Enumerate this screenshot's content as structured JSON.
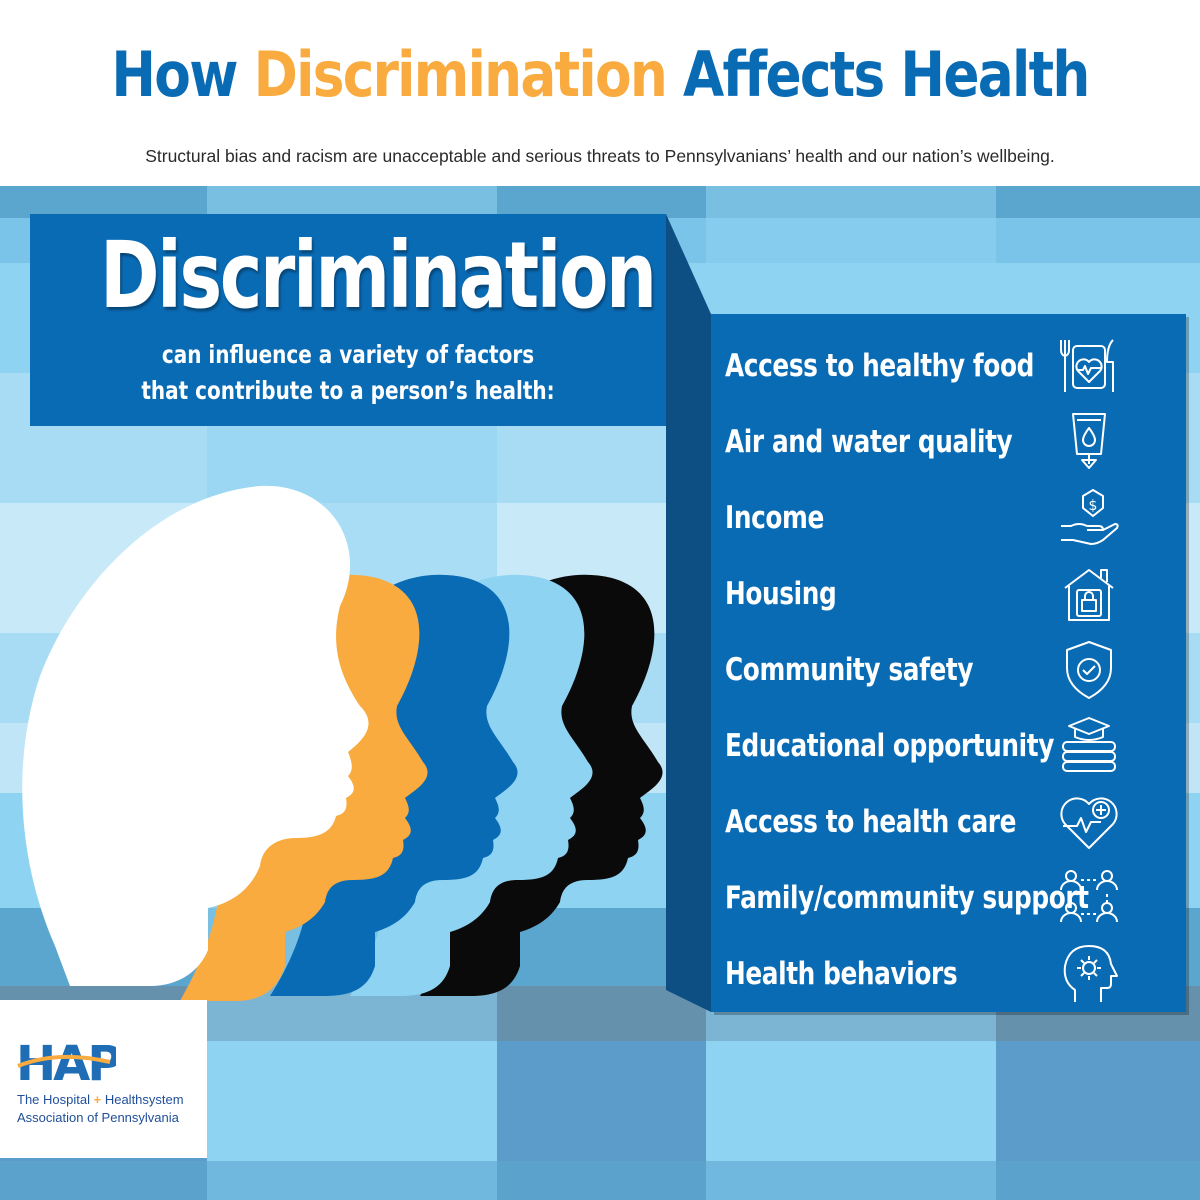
{
  "header": {
    "title_part1": "How",
    "title_highlight": "Discrimination",
    "title_part2": "Affects Health",
    "subtitle": "Structural bias and racism are unacceptable and serious threats to Pennsylvanians’ health and our nation’s wellbeing."
  },
  "callout": {
    "headline": "Discrimination",
    "subtext_line1": "can influence a variety of factors",
    "subtext_line2": "that contribute to a person’s health:"
  },
  "factors": [
    {
      "label": "Access to healthy food",
      "icon": "healthy-food-icon"
    },
    {
      "label": "Air and water quality",
      "icon": "water-quality-icon"
    },
    {
      "label": "Income",
      "icon": "income-icon"
    },
    {
      "label": "Housing",
      "icon": "housing-icon"
    },
    {
      "label": "Community safety",
      "icon": "shield-check-icon"
    },
    {
      "label": "Educational opportunity",
      "icon": "books-icon"
    },
    {
      "label": "Access to health care",
      "icon": "heart-plus-icon"
    },
    {
      "label": "Family/community support",
      "icon": "people-network-icon"
    },
    {
      "label": "Health behaviors",
      "icon": "head-gear-icon"
    }
  ],
  "logo": {
    "acronym": "HAP",
    "line1_a": "The Hospital",
    "line1_plus": "+",
    "line1_b": "Healthsystem",
    "line2": "Association of Pennsylvania"
  },
  "colors": {
    "primary_blue": "#0a6bb5",
    "accent_orange": "#f9ab3f",
    "light_blue": "#8fd3f3",
    "black": "#0a0a0a",
    "white": "#ffffff"
  }
}
